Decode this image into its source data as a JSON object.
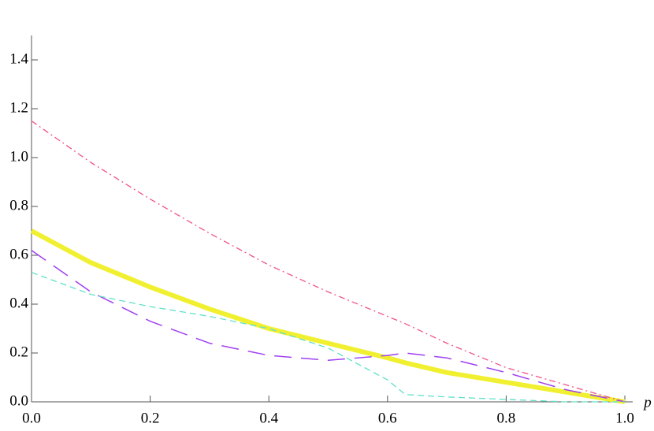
{
  "chart_data": {
    "type": "line",
    "x_label": "p",
    "x": [
      0.0,
      0.1,
      0.2,
      0.3,
      0.4,
      0.5,
      0.6,
      0.63,
      0.7,
      0.8,
      0.9,
      1.0
    ],
    "series": [
      {
        "color": "#f0f030",
        "dash": "solid",
        "values": [
          0.7,
          0.57,
          0.47,
          0.38,
          0.3,
          0.24,
          0.18,
          0.16,
          0.12,
          0.08,
          0.04,
          0.0
        ]
      },
      {
        "color": "#f0528c",
        "dash": "dashdot",
        "values": [
          1.15,
          0.98,
          0.83,
          0.69,
          0.56,
          0.45,
          0.35,
          0.32,
          0.24,
          0.14,
          0.07,
          0.0
        ]
      },
      {
        "color": "#a040f0",
        "dash": "longdash",
        "values": [
          0.62,
          0.45,
          0.33,
          0.24,
          0.19,
          0.17,
          0.19,
          0.2,
          0.18,
          0.12,
          0.05,
          0.0
        ]
      },
      {
        "color": "#60e0c8",
        "dash": "dash",
        "values": [
          0.53,
          0.44,
          0.39,
          0.35,
          0.3,
          0.22,
          0.09,
          0.03,
          0.02,
          0.01,
          0.0,
          0.0
        ]
      }
    ],
    "xlim": [
      0,
      1
    ],
    "ylim": [
      0,
      1.5
    ],
    "xticks": [
      {
        "value": 0,
        "label": "0.0"
      },
      0.2,
      0.4,
      0.6,
      0.8,
      {
        "value": 1,
        "label": "1.0"
      }
    ],
    "yticks": [
      {
        "value": 0,
        "label": "0.0"
      },
      0.2,
      0.4,
      0.6,
      0.8,
      {
        "value": 1,
        "label": "1.0"
      },
      1.2,
      1.4
    ]
  }
}
